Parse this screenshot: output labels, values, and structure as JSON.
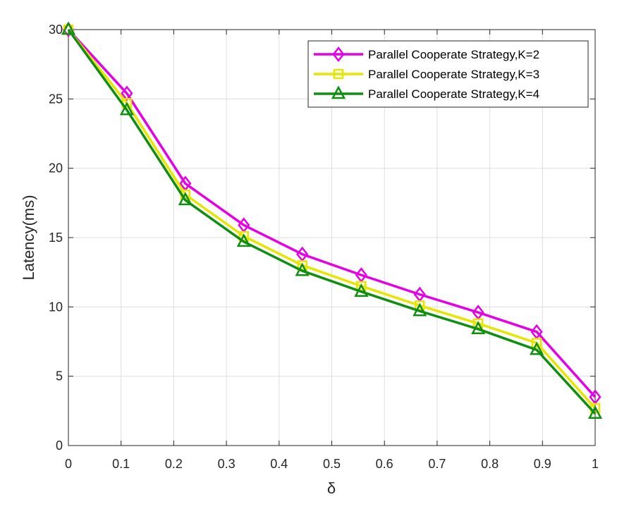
{
  "chart_data": {
    "type": "line",
    "title": "",
    "xlabel": "δ",
    "ylabel": "Latency(ms)",
    "xlim": [
      0,
      1
    ],
    "ylim": [
      0,
      30
    ],
    "xticks": [
      "0",
      "0.1",
      "0.2",
      "0.3",
      "0.4",
      "0.5",
      "0.6",
      "0.7",
      "0.8",
      "0.9",
      "1"
    ],
    "yticks": [
      "0",
      "5",
      "10",
      "15",
      "20",
      "25",
      "30"
    ],
    "grid": true,
    "legend_position": "top-right",
    "x": [
      0,
      0.111,
      0.222,
      0.333,
      0.444,
      0.556,
      0.667,
      0.778,
      0.889,
      1.0
    ],
    "series": [
      {
        "name": "Parallel Cooperate Strategy,K=2",
        "color": "#e600e6",
        "marker": "diamond",
        "values": [
          30.0,
          25.4,
          18.9,
          15.9,
          13.8,
          12.3,
          10.9,
          9.6,
          8.2,
          3.5
        ]
      },
      {
        "name": "Parallel Cooperate Strategy,K=3",
        "color": "#e6e600",
        "marker": "square",
        "values": [
          30.0,
          24.7,
          18.1,
          15.1,
          13.0,
          11.5,
          10.1,
          8.8,
          7.4,
          2.7
        ]
      },
      {
        "name": "Parallel Cooperate Strategy,K=4",
        "color": "#0f8f0f",
        "marker": "triangle",
        "values": [
          30.0,
          24.2,
          17.7,
          14.7,
          12.6,
          11.1,
          9.7,
          8.4,
          6.9,
          2.3
        ]
      }
    ]
  }
}
